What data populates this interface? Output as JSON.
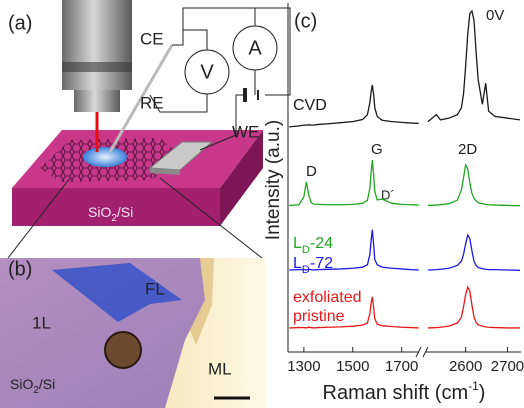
{
  "figure": {
    "panel_a": "(a)",
    "panel_b": "(b)"
  },
  "setup": {
    "counter_electrode": "CE",
    "reference_electrode": "RE",
    "working_electrode": "WE",
    "voltmeter": "V",
    "ammeter": "A",
    "substrate": [
      "SiO",
      "2",
      "/Si"
    ]
  },
  "micrograph": {
    "few_layer": "FL",
    "single_layer": "1L",
    "substrate": [
      "SiO",
      "2",
      "/Si"
    ],
    "multi_layer": "ML"
  },
  "raman": {
    "panel": "(c)",
    "voltage": "0V",
    "y_label": "Intensity (a.u.)",
    "x_label": [
      "Raman shift (cm",
      "-1",
      ")"
    ],
    "peaks": {
      "D": "D",
      "G": "G",
      "D_prime": "D´",
      "2D": "2D"
    }
  },
  "chart_data": [
    {
      "type": "line",
      "x": [
        1240,
        1280,
        1300,
        1310,
        1320,
        1330,
        1340,
        1360,
        1400,
        1450,
        1500,
        1540,
        1560,
        1570,
        1575,
        1580,
        1585,
        1590,
        1600,
        1620,
        1660,
        1700,
        1740,
        1770
      ],
      "xlim": [
        1235,
        1775
      ],
      "xticks": [
        1300,
        1500,
        1700
      ],
      "ylim": [
        0,
        100
      ],
      "series": [
        {
          "name": "CVD",
          "color": "#1a1a1a",
          "values": [
            64.5,
            64.8,
            65,
            65,
            65.1,
            65,
            65,
            65.2,
            65.4,
            65.7,
            66,
            66.6,
            68,
            71.5,
            74.5,
            76.5,
            74,
            70,
            67.5,
            66.4,
            66,
            65.8,
            65.6,
            65.5
          ]
        },
        {
          "name_parts": {
            "main": "L",
            "sub": "D",
            "suffix": "-24"
          },
          "color": "#1fa81f",
          "values": [
            42,
            42.2,
            44.5,
            48.7,
            45,
            42.8,
            42.4,
            42.3,
            42.2,
            42.2,
            42.3,
            42.6,
            43.5,
            47,
            51.5,
            55,
            51,
            46,
            43.6,
            43.8,
            42.6,
            42.3,
            42.2,
            42.1
          ]
        },
        {
          "name_parts": {
            "main": "L",
            "sub": "D",
            "suffix": "-72"
          },
          "color": "#1a1ae6",
          "values": [
            23.5,
            23.6,
            23.6,
            23.5,
            23.7,
            23.6,
            23.5,
            23.6,
            23.7,
            23.8,
            24,
            24.3,
            25,
            28,
            32,
            35,
            31,
            26.5,
            25,
            24.3,
            24,
            23.8,
            23.6,
            23.5
          ]
        },
        {
          "name_lines": [
            "exfoliated",
            "pristine"
          ],
          "color": "#e61a1a",
          "values": [
            6.9,
            7,
            7,
            6.9,
            7.1,
            7,
            6.9,
            7,
            7.1,
            7.2,
            7.4,
            7.7,
            8.3,
            11,
            14,
            15.8,
            13,
            9.5,
            8,
            7.5,
            7.3,
            7.1,
            7,
            6.9
          ]
        }
      ]
    },
    {
      "type": "line",
      "x": [
        2510,
        2530,
        2540,
        2560,
        2580,
        2590,
        2595,
        2600,
        2605,
        2610,
        2615,
        2620,
        2625,
        2630,
        2640,
        2648,
        2655,
        2670,
        2700,
        2730
      ],
      "xlim": [
        2510,
        2730
      ],
      "xticks": [
        2600,
        2700
      ],
      "ylim": [
        0,
        100
      ],
      "series": [
        {
          "color": "#1a1a1a",
          "values": [
            66,
            68,
            66.5,
            67,
            68,
            70,
            74,
            82,
            91,
            97,
            97.7,
            95,
            86,
            78,
            71,
            77,
            69,
            67.5,
            67,
            66.5
          ]
        },
        {
          "color": "#1fa81f",
          "values": [
            42,
            42.1,
            42.2,
            42.5,
            43.5,
            46.5,
            50,
            53.6,
            52.5,
            48.5,
            45.5,
            44,
            43.3,
            42.8,
            42.5,
            42.3,
            42.2,
            42.1,
            42,
            41.9
          ]
        },
        {
          "color": "#1a1ae6",
          "values": [
            23.5,
            23.6,
            23.7,
            24,
            24.8,
            26,
            28,
            31,
            33.5,
            32.5,
            29,
            26,
            24.8,
            24.2,
            23.9,
            23.7,
            23.6,
            23.6,
            23.5,
            23.4
          ]
        },
        {
          "color": "#e61a1a",
          "values": [
            6.9,
            7,
            7.1,
            7.4,
            8.3,
            10,
            13,
            16.5,
            18.6,
            17.5,
            13.5,
            10,
            8.5,
            7.8,
            7.4,
            7.2,
            7.1,
            7,
            6.9,
            6.9
          ]
        }
      ]
    }
  ]
}
